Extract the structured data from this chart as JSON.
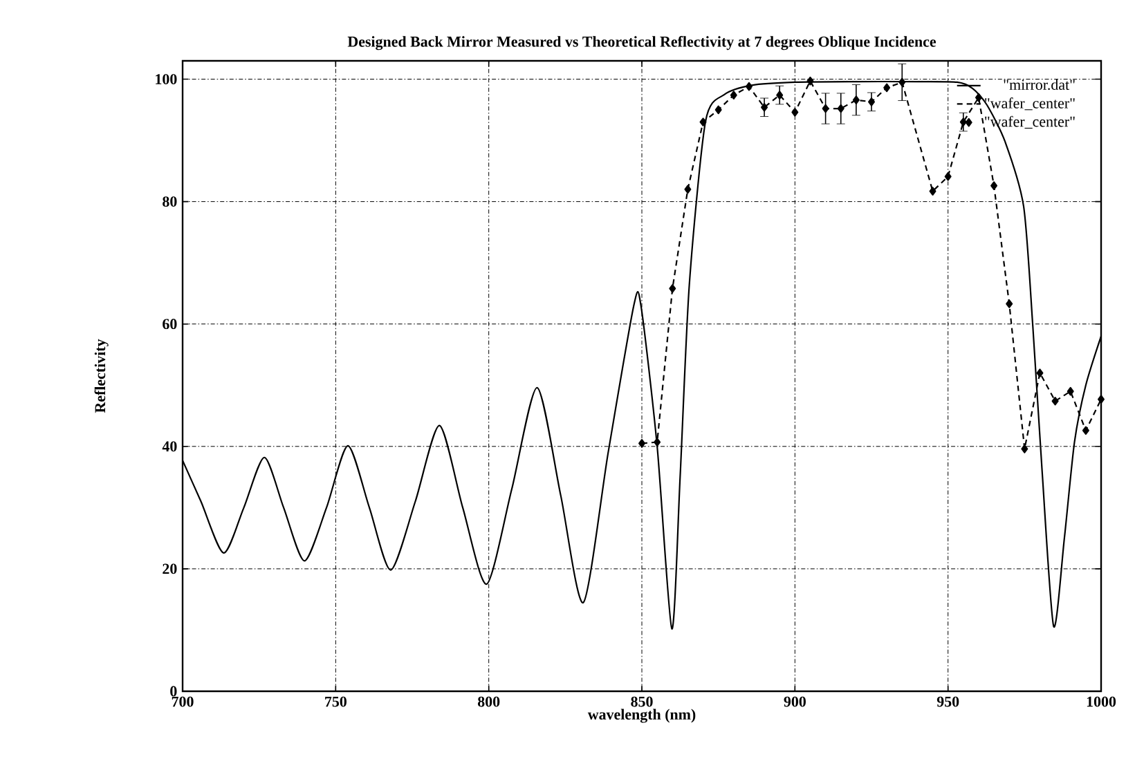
{
  "chart_data": {
    "type": "line",
    "title": "Designed Back Mirror Measured vs Theoretical Reflectivity at 7 degrees Oblique Incidence",
    "xlabel": "wavelength (nm)",
    "ylabel": "Reflectivity",
    "xlim": [
      700,
      1000
    ],
    "ylim": [
      0,
      103
    ],
    "xticks": [
      700,
      750,
      800,
      850,
      900,
      950,
      1000
    ],
    "yticks": [
      0,
      20,
      40,
      60,
      80,
      100
    ],
    "grid": true,
    "legend": "top right",
    "series": [
      {
        "name": "\"mirror.dat\"",
        "color": "#000000",
        "line_style": "solid",
        "marker": "none",
        "x": [
          700,
          706,
          713.4,
          720,
          726.7,
          733,
          739.8,
          747,
          754,
          761,
          768,
          776,
          783.9,
          791.5,
          799.3,
          807.5,
          815.8,
          823.5,
          830.9,
          839,
          847.4,
          849.7,
          855,
          859.8,
          862.5,
          865.5,
          870.8,
          877,
          885.9,
          900,
          920,
          940,
          953,
          958,
          962.7,
          968.7,
          974.7,
          977.7,
          980.7,
          984.5,
          988,
          991.3,
          995,
          1000
        ],
        "values": [
          37.7,
          31,
          22.6,
          30,
          38.2,
          30,
          21.3,
          30,
          40.1,
          30,
          19.8,
          31,
          43.4,
          30,
          17.5,
          33,
          49.6,
          32,
          14.5,
          39,
          63.1,
          63,
          40,
          10.2,
          35,
          66.4,
          93.1,
          97.5,
          99,
          99.5,
          99.6,
          99.6,
          99.5,
          98.5,
          95.8,
          89.7,
          79.2,
          59.6,
          36.2,
          10.6,
          25,
          40.7,
          50,
          58
        ]
      },
      {
        "name": "\"wafer_center\"",
        "color": "#000000",
        "line_style": "dashed",
        "marker": "none",
        "x": [
          850,
          855,
          860,
          865,
          870,
          875,
          880,
          885,
          890,
          895,
          900,
          905,
          910,
          915,
          920,
          925,
          930,
          935,
          945,
          950,
          955,
          960,
          965,
          970,
          975,
          980,
          985,
          990,
          995,
          1000
        ],
        "values": [
          40.5,
          40.7,
          65.8,
          82,
          93,
          95,
          97.4,
          98.8,
          95.4,
          97.4,
          94.6,
          99.7,
          95.2,
          95.2,
          96.6,
          96.3,
          98.6,
          99.5,
          81.7,
          84.1,
          93,
          97,
          82.6,
          63.3,
          39.6,
          52,
          47.4,
          49,
          42.6,
          47.7
        ]
      },
      {
        "name": "\"wafer_center\"",
        "color": "#000000",
        "type": "scatter",
        "marker": "diamond",
        "x": [
          850,
          855,
          860,
          865,
          870,
          875,
          880,
          885,
          890,
          895,
          900,
          905,
          910,
          915,
          920,
          925,
          930,
          935,
          945,
          950,
          955,
          960,
          965,
          970,
          975,
          980,
          985,
          990,
          995,
          1000
        ],
        "values": [
          40.5,
          40.7,
          65.8,
          82,
          93,
          95,
          97.4,
          98.8,
          95.4,
          97.4,
          94.6,
          99.7,
          95.2,
          95.2,
          96.6,
          96.3,
          98.6,
          99.5,
          81.7,
          84.1,
          93,
          97,
          82.6,
          63.3,
          39.6,
          52,
          47.4,
          49,
          42.6,
          47.7
        ],
        "errors": [
          null,
          null,
          null,
          null,
          null,
          null,
          null,
          null,
          1.5,
          1.5,
          null,
          null,
          2.5,
          2.5,
          2.5,
          1.5,
          null,
          3,
          null,
          null,
          1.5,
          null,
          null,
          null,
          null,
          null,
          null,
          null,
          null,
          null
        ]
      }
    ]
  }
}
